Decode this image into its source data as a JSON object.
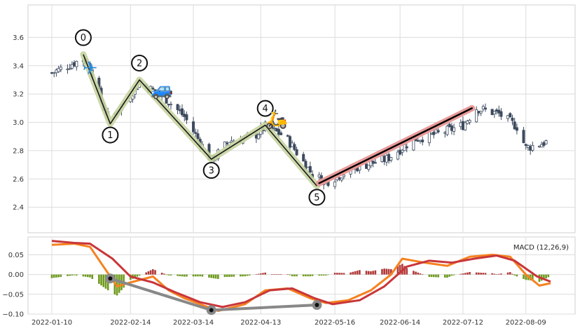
{
  "chart_data": [
    {
      "type": "candlestick",
      "panel": "price",
      "ylim": [
        2.22,
        3.83
      ],
      "ytick_labels": [
        "2.4",
        "2.6",
        "2.8",
        "3.0",
        "3.2",
        "3.4",
        "3.6"
      ],
      "grid": true,
      "colors": {
        "up_body": "#ffffff",
        "down_body": "#3d4a5e",
        "outline": "#3d4a5e"
      },
      "ohlc_start_date": "2022-01-10",
      "close_anchors": [
        [
          "2022-01-10",
          3.35
        ],
        [
          "2022-01-24",
          3.45
        ],
        [
          "2022-01-27",
          3.4
        ],
        [
          "2022-02-02",
          3.1
        ],
        [
          "2022-02-05",
          3.02
        ],
        [
          "2022-02-10",
          3.12
        ],
        [
          "2022-02-18",
          3.28
        ],
        [
          "2022-03-01",
          3.18
        ],
        [
          "2022-03-10",
          3.04
        ],
        [
          "2022-03-22",
          2.73
        ],
        [
          "2022-03-30",
          2.87
        ],
        [
          "2022-04-10",
          2.9
        ],
        [
          "2022-04-15",
          2.97
        ],
        [
          "2022-04-24",
          2.9
        ],
        [
          "2022-05-06",
          2.63
        ],
        [
          "2022-05-12",
          2.58
        ],
        [
          "2022-05-25",
          2.68
        ],
        [
          "2022-06-08",
          2.74
        ],
        [
          "2022-06-20",
          2.88
        ],
        [
          "2022-07-01",
          2.92
        ],
        [
          "2022-07-12",
          2.98
        ],
        [
          "2022-07-18",
          3.1
        ],
        [
          "2022-07-28",
          3.06
        ],
        [
          "2022-08-05",
          2.97
        ],
        [
          "2022-08-09",
          2.82
        ],
        [
          "2022-08-18",
          2.86
        ]
      ],
      "zigzag": {
        "color": "#1a1a1a",
        "highlight_color": "#c6d4a0",
        "points": [
          {
            "label": "0",
            "date": "2022-01-24",
            "value": 3.48
          },
          {
            "label": "1",
            "date": "2022-02-05",
            "value": 2.99
          },
          {
            "label": "2",
            "date": "2022-02-18",
            "value": 3.3
          },
          {
            "label": "3",
            "date": "2022-03-22",
            "value": 2.74
          },
          {
            "label": "4",
            "date": "2022-04-15",
            "value": 2.98
          },
          {
            "label": "5",
            "date": "2022-05-08",
            "value": 2.55
          }
        ]
      },
      "trendline": {
        "color": "#000000",
        "highlight_color": "#e89a9a",
        "points": [
          {
            "date": "2022-05-09",
            "value": 2.57
          },
          {
            "date": "2022-07-16",
            "value": 3.1
          }
        ]
      },
      "emoji_markers": [
        {
          "icon": "airplane",
          "glyph": "✈",
          "date": "2022-01-27",
          "value": 3.39
        },
        {
          "icon": "car",
          "glyph": "🚙",
          "date": "2022-02-28",
          "value": 3.24
        },
        {
          "icon": "scooter",
          "glyph": "🛵",
          "date": "2022-04-20",
          "value": 3.03
        }
      ]
    },
    {
      "type": "macd",
      "panel": "indicator",
      "legend_label": "MACD (12,26,9)",
      "legend_position": "top-right",
      "ylim": [
        -0.1,
        0.095
      ],
      "ytick_labels": [
        "0.05",
        "0.00",
        "−0.05",
        "−0.10"
      ],
      "grid": true,
      "x_tick_labels": [
        {
          "date": "2022-01-10",
          "label": "2022-01-10"
        },
        {
          "date": "2022-02-14",
          "label": "2022-02-14"
        },
        {
          "date": "2022-03-14",
          "label": "2022-03-14"
        },
        {
          "date": "2022-04-13",
          "label": "2022-04-13"
        },
        {
          "date": "2022-05-16",
          "label": "2022-05-16"
        },
        {
          "date": "2022-06-14",
          "label": "2022-06-14"
        },
        {
          "date": "2022-07-12",
          "label": "2022-07-12"
        },
        {
          "date": "2022-08-09",
          "label": "2022-08-09"
        }
      ],
      "x_start_date": "2022-01-10",
      "x_end_date": "2022-08-20",
      "colors": {
        "macd": "#f5821f",
        "signal": "#c8363a",
        "hist_pos": "#b13838",
        "hist_neg": "#6e9a1e",
        "divergence": "#888888"
      },
      "macd_line": [
        [
          "2022-01-10",
          0.075
        ],
        [
          "2022-01-20",
          0.078
        ],
        [
          "2022-01-27",
          0.07
        ],
        [
          "2022-02-02",
          0.02
        ],
        [
          "2022-02-08",
          -0.03
        ],
        [
          "2022-02-14",
          -0.02
        ],
        [
          "2022-02-24",
          -0.005
        ],
        [
          "2022-03-03",
          -0.04
        ],
        [
          "2022-03-10",
          -0.06
        ],
        [
          "2022-03-17",
          -0.075
        ],
        [
          "2022-03-25",
          -0.092
        ],
        [
          "2022-04-06",
          -0.075
        ],
        [
          "2022-04-15",
          -0.04
        ],
        [
          "2022-04-25",
          -0.035
        ],
        [
          "2022-05-05",
          -0.06
        ],
        [
          "2022-05-12",
          -0.072
        ],
        [
          "2022-05-22",
          -0.065
        ],
        [
          "2022-06-01",
          -0.04
        ],
        [
          "2022-06-10",
          0.0
        ],
        [
          "2022-06-15",
          0.04
        ],
        [
          "2022-06-25",
          0.03
        ],
        [
          "2022-07-05",
          0.022
        ],
        [
          "2022-07-15",
          0.045
        ],
        [
          "2022-07-25",
          0.05
        ],
        [
          "2022-08-02",
          0.045
        ],
        [
          "2022-08-09",
          0.0
        ],
        [
          "2022-08-15",
          -0.028
        ],
        [
          "2022-08-20",
          -0.022
        ]
      ],
      "signal_line": [
        [
          "2022-01-10",
          0.085
        ],
        [
          "2022-01-20",
          0.08
        ],
        [
          "2022-01-27",
          0.078
        ],
        [
          "2022-02-06",
          0.04
        ],
        [
          "2022-02-14",
          -0.005
        ],
        [
          "2022-02-24",
          -0.02
        ],
        [
          "2022-03-06",
          -0.045
        ],
        [
          "2022-03-17",
          -0.07
        ],
        [
          "2022-03-27",
          -0.082
        ],
        [
          "2022-04-06",
          -0.07
        ],
        [
          "2022-04-17",
          -0.04
        ],
        [
          "2022-04-27",
          -0.035
        ],
        [
          "2022-05-07",
          -0.06
        ],
        [
          "2022-05-15",
          -0.075
        ],
        [
          "2022-05-27",
          -0.065
        ],
        [
          "2022-06-07",
          -0.03
        ],
        [
          "2022-06-17",
          0.02
        ],
        [
          "2022-06-27",
          0.035
        ],
        [
          "2022-07-07",
          0.03
        ],
        [
          "2022-07-17",
          0.04
        ],
        [
          "2022-07-27",
          0.048
        ],
        [
          "2022-08-04",
          0.035
        ],
        [
          "2022-08-14",
          -0.005
        ],
        [
          "2022-08-20",
          -0.018
        ]
      ],
      "divergence_points": [
        {
          "date": "2022-02-05",
          "value": -0.01
        },
        {
          "date": "2022-03-22",
          "value": -0.09
        },
        {
          "date": "2022-05-08",
          "value": -0.077
        }
      ]
    }
  ]
}
